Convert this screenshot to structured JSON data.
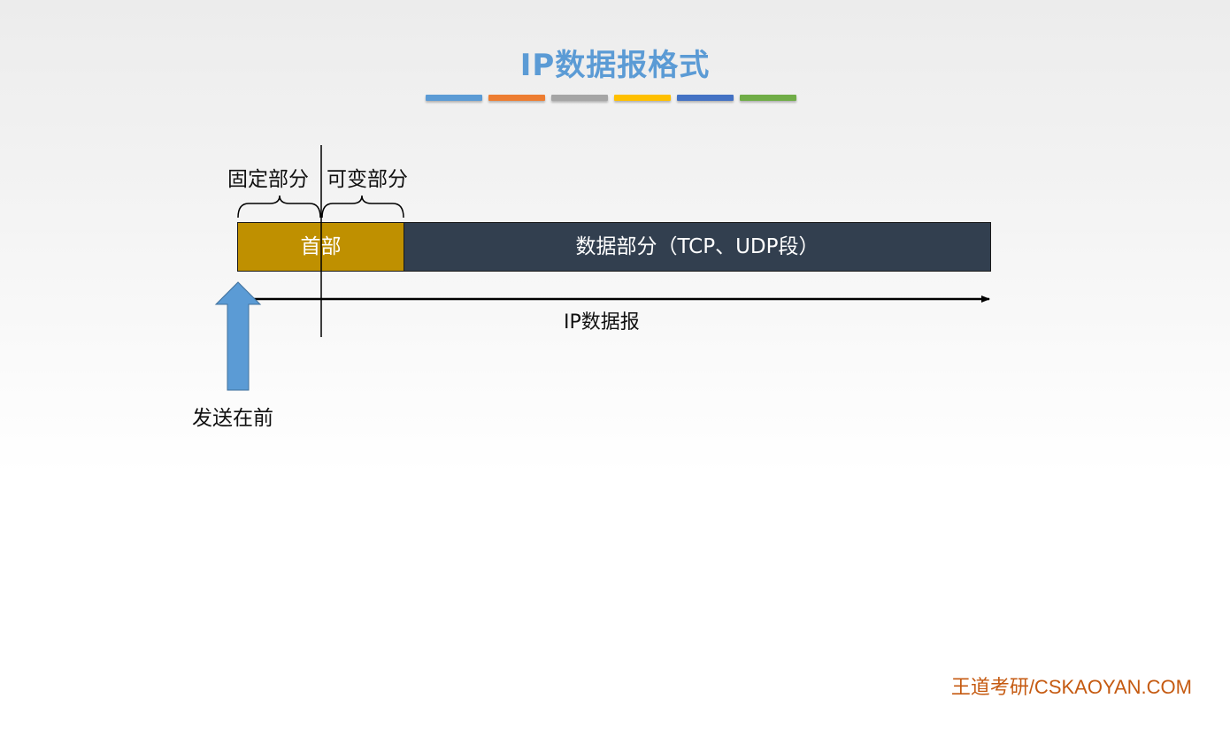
{
  "title": "IP数据报格式",
  "title_bar_colors": [
    "#5b9bd5",
    "#ed7d31",
    "#a5a5a5",
    "#ffc000",
    "#4472c4",
    "#70ad47"
  ],
  "diagram": {
    "fixed_part_label": "固定部分",
    "variable_part_label": "可变部分",
    "header_label": "首部",
    "header_color": "#bf9000",
    "data_label": "数据部分（TCP、UDP段）",
    "data_color": "#323f4f",
    "datagram_label": "IP数据报",
    "send_first_label": "发送在前",
    "arrow_color": "#5b9bd5"
  },
  "footer": "王道考研/CSKAOYAN.COM"
}
